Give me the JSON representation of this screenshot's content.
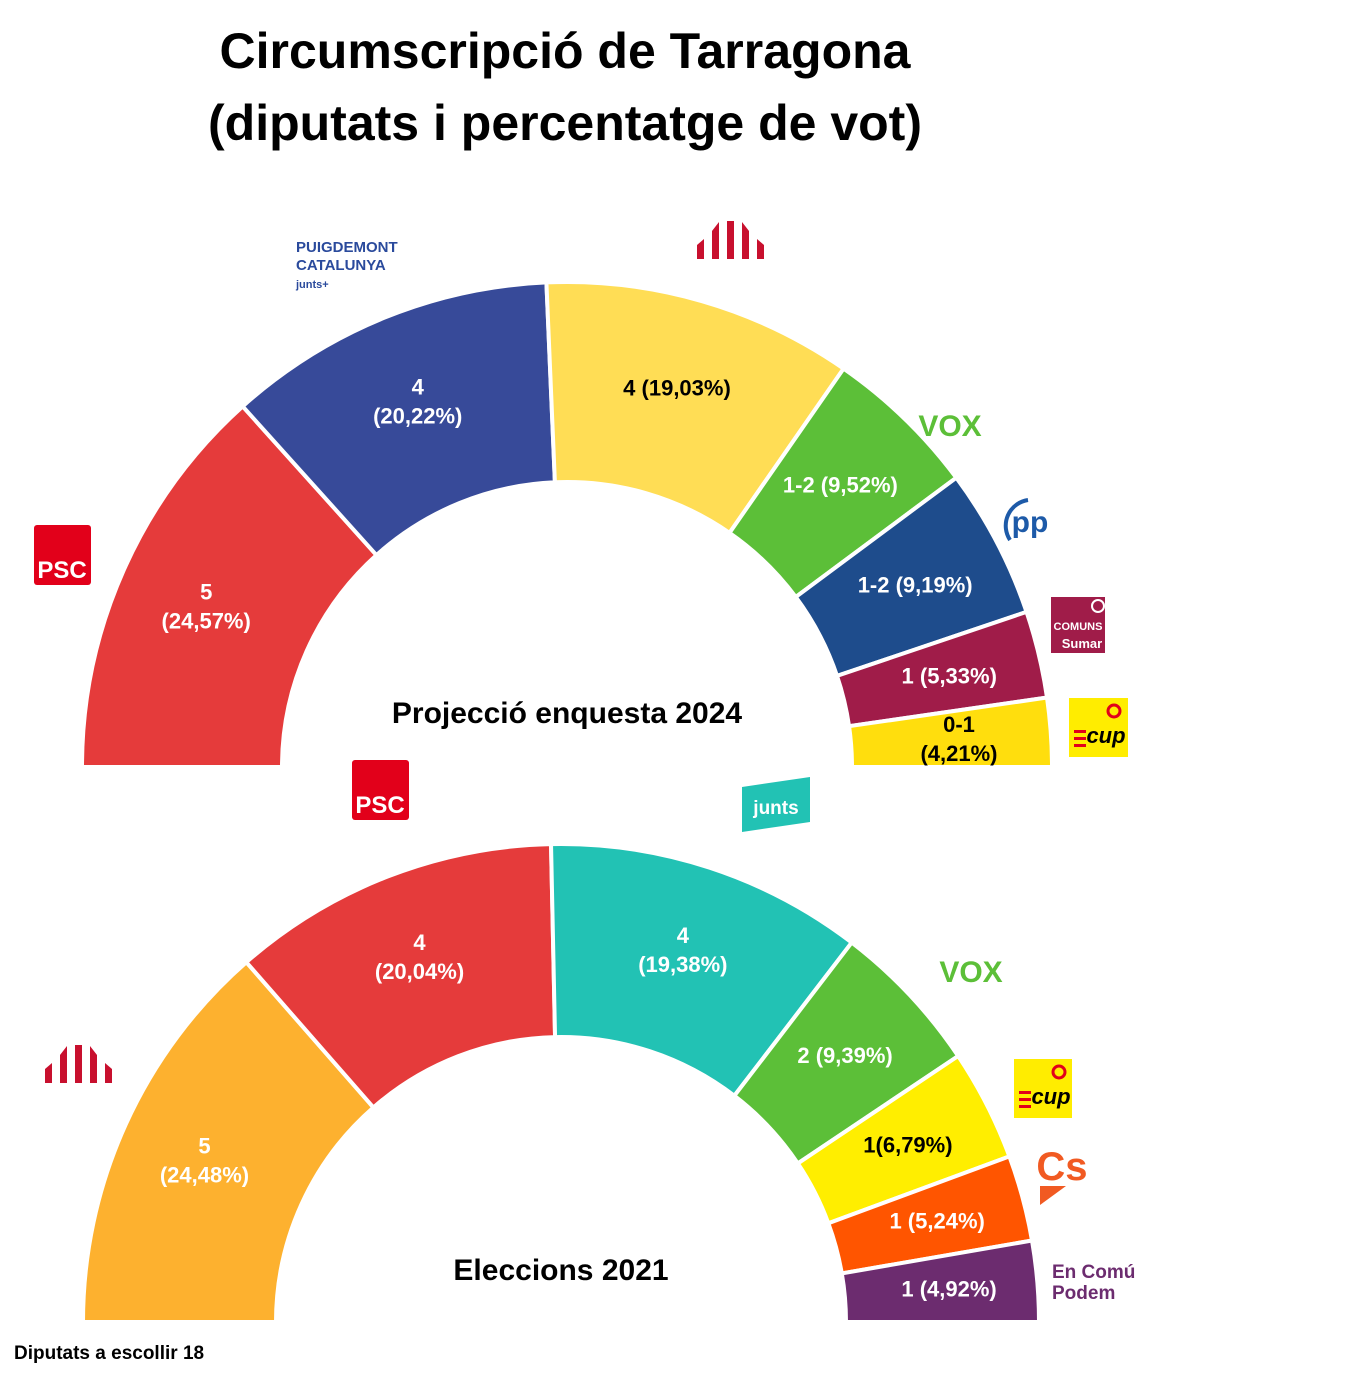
{
  "title_line1": "Circumscripció de Tarragona",
  "title_line2": "(diputats i percentatge de vot)",
  "footnote": "Diputats a escollir 18",
  "chart_data": [
    {
      "type": "semicircle",
      "title": "Projecció enquesta 2024",
      "segments": [
        {
          "party_logo": "PSC",
          "seats": "5",
          "percent": 24.57,
          "label_lines": [
            "5",
            "(24,57%)"
          ],
          "color": "#E53B3B",
          "label_color": "#ffffff"
        },
        {
          "party_logo": "PUIGDEMONT CATALUNYA junts+",
          "seats": "4",
          "percent": 20.22,
          "label_lines": [
            "4",
            "(20,22%)"
          ],
          "color": "#374A99",
          "label_color": "#ffffff"
        },
        {
          "party_logo": "ERC-icon",
          "seats": "4",
          "percent": 19.03,
          "label_lines": [
            "4 (19,03%)"
          ],
          "color": "#FFDD55",
          "label_color": "#000000"
        },
        {
          "party_logo": "VOX",
          "seats": "1-2",
          "percent": 9.52,
          "label_lines": [
            "1-2 (9,52%)"
          ],
          "color": "#5CBF38",
          "label_color": "#ffffff"
        },
        {
          "party_logo": "PP",
          "seats": "1-2",
          "percent": 9.19,
          "label_lines": [
            "1-2 (9,19%)"
          ],
          "color": "#1E4C8C",
          "label_color": "#ffffff"
        },
        {
          "party_logo": "COMUNS Sumar",
          "seats": "1",
          "percent": 5.33,
          "label_lines": [
            "1 (5,33%)"
          ],
          "color": "#A01C49",
          "label_color": "#ffffff"
        },
        {
          "party_logo": "CUP",
          "seats": "0-1",
          "percent": 4.21,
          "label_lines": [
            "0-1",
            "(4,21%)"
          ],
          "color": "#FFDE0D",
          "label_color": "#000000"
        }
      ]
    },
    {
      "type": "semicircle",
      "title": "Eleccions 2021",
      "segments": [
        {
          "party_logo": "ERC-icon",
          "seats": "5",
          "percent": 24.48,
          "label_lines": [
            "5",
            "(24,48%)"
          ],
          "color": "#FDB12F",
          "label_color": "#ffffff"
        },
        {
          "party_logo": "PSC",
          "seats": "4",
          "percent": 20.04,
          "label_lines": [
            "4",
            "(20,04%)"
          ],
          "color": "#E53B3B",
          "label_color": "#ffffff"
        },
        {
          "party_logo": "junts",
          "seats": "4",
          "percent": 19.38,
          "label_lines": [
            "4",
            "(19,38%)"
          ],
          "color": "#22C2B4",
          "label_color": "#ffffff"
        },
        {
          "party_logo": "VOX",
          "seats": "2",
          "percent": 9.39,
          "label_lines": [
            "2 (9,39%)"
          ],
          "color": "#5CBF38",
          "label_color": "#ffffff"
        },
        {
          "party_logo": "CUP",
          "seats": "1",
          "percent": 6.79,
          "label_lines": [
            "1(6,79%)"
          ],
          "color": "#FFEE00",
          "label_color": "#000000"
        },
        {
          "party_logo": "Cs",
          "seats": "1",
          "percent": 5.24,
          "label_lines": [
            "1 (5,24%)"
          ],
          "color": "#FF5500",
          "label_color": "#ffffff"
        },
        {
          "party_logo": "En Comú Podem",
          "seats": "1",
          "percent": 4.92,
          "label_lines": [
            "1 (4,92%)"
          ],
          "color": "#6C2C6F",
          "label_color": "#ffffff"
        }
      ]
    }
  ],
  "logos": {
    "psc": "PSC",
    "puigdemont_line1": "PUIGDEMONT",
    "puigdemont_line2": "CATALUNYA",
    "puigdemont_line3": "junts+",
    "vox": "VOX",
    "pp": "pp",
    "comuns_line1": "COMUNS",
    "comuns_line2": "Sumar",
    "cup": "cup",
    "junts": "junts",
    "cs": "Cs",
    "encomu_line1": "En Comú",
    "encomu_line2": "Podem"
  },
  "colors": {
    "psc_red": "#E2001A",
    "junts_blue": "#2A4A9C",
    "erc_red": "#C8102E",
    "vox_green": "#5CBF38",
    "pp_blue": "#1D5AA8",
    "comuns_maroon": "#A01C49",
    "cup_yellow": "#FFED00",
    "junts_teal": "#22C2B4",
    "cs_orange": "#F15A22",
    "podem_purple": "#6C2C6F"
  }
}
